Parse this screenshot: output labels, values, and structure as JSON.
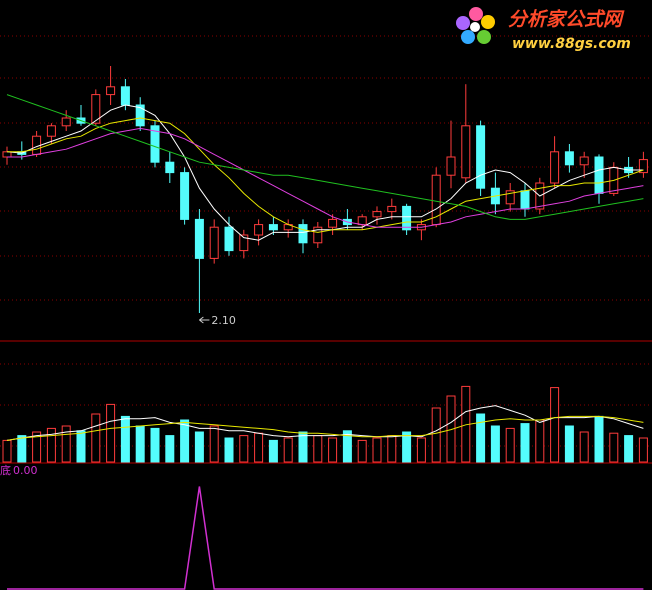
{
  "watermark": {
    "title": "分析家公式网",
    "url": "www.88gs.com"
  },
  "chart_data": {
    "type": "candlestick",
    "ylim": [
      2.0,
      3.3
    ],
    "up_color": "#ff3c3c",
    "down_color": "#54fcfc",
    "open": [
      2.7,
      2.72,
      2.71,
      2.78,
      2.82,
      2.85,
      2.83,
      2.94,
      2.97,
      2.9,
      2.82,
      2.68,
      2.64,
      2.46,
      2.31,
      2.43,
      2.34,
      2.4,
      2.44,
      2.42,
      2.44,
      2.37,
      2.43,
      2.46,
      2.44,
      2.47,
      2.49,
      2.51,
      2.42,
      2.44,
      2.63,
      2.62,
      2.82,
      2.58,
      2.52,
      2.57,
      2.5,
      2.6,
      2.72,
      2.67,
      2.7,
      2.56,
      2.66,
      2.64
    ],
    "high": [
      2.74,
      2.76,
      2.8,
      2.83,
      2.88,
      2.9,
      2.96,
      3.05,
      3.0,
      2.93,
      2.84,
      2.72,
      2.66,
      2.5,
      2.46,
      2.47,
      2.42,
      2.46,
      2.47,
      2.46,
      2.46,
      2.45,
      2.48,
      2.5,
      2.48,
      2.51,
      2.54,
      2.52,
      2.46,
      2.66,
      2.84,
      2.98,
      2.84,
      2.64,
      2.6,
      2.6,
      2.62,
      2.78,
      2.75,
      2.72,
      2.71,
      2.68,
      2.7,
      2.72
    ],
    "low": [
      2.67,
      2.69,
      2.7,
      2.75,
      2.8,
      2.82,
      2.82,
      2.9,
      2.88,
      2.8,
      2.66,
      2.6,
      2.44,
      2.1,
      2.29,
      2.32,
      2.31,
      2.36,
      2.4,
      2.39,
      2.33,
      2.35,
      2.4,
      2.42,
      2.42,
      2.44,
      2.46,
      2.4,
      2.38,
      2.43,
      2.58,
      2.6,
      2.55,
      2.48,
      2.49,
      2.47,
      2.48,
      2.58,
      2.64,
      2.62,
      2.52,
      2.55,
      2.62,
      2.62
    ],
    "close": [
      2.72,
      2.71,
      2.78,
      2.82,
      2.85,
      2.83,
      2.94,
      2.97,
      2.9,
      2.82,
      2.68,
      2.64,
      2.46,
      2.31,
      2.43,
      2.34,
      2.4,
      2.44,
      2.42,
      2.44,
      2.37,
      2.43,
      2.46,
      2.44,
      2.47,
      2.49,
      2.51,
      2.42,
      2.44,
      2.63,
      2.7,
      2.82,
      2.58,
      2.52,
      2.57,
      2.5,
      2.6,
      2.72,
      2.67,
      2.7,
      2.56,
      2.66,
      2.64,
      2.69
    ],
    "low_label": "2.10",
    "lines": [
      {
        "color": "#ffffff",
        "values": [
          2.72,
          2.715,
          2.74,
          2.76,
          2.78,
          2.8,
          2.84,
          2.88,
          2.9,
          2.89,
          2.86,
          2.79,
          2.7,
          2.58,
          2.5,
          2.44,
          2.39,
          2.38,
          2.41,
          2.41,
          2.41,
          2.42,
          2.42,
          2.43,
          2.43,
          2.46,
          2.47,
          2.47,
          2.47,
          2.5,
          2.54,
          2.6,
          2.63,
          2.65,
          2.64,
          2.6,
          2.55,
          2.58,
          2.61,
          2.63,
          2.65,
          2.66,
          2.65,
          2.65
        ]
      },
      {
        "color": "#e8e800",
        "values": [
          2.72,
          2.72,
          2.73,
          2.75,
          2.77,
          2.78,
          2.81,
          2.83,
          2.84,
          2.85,
          2.84,
          2.83,
          2.79,
          2.73,
          2.67,
          2.62,
          2.56,
          2.51,
          2.47,
          2.44,
          2.42,
          2.41,
          2.42,
          2.42,
          2.42,
          2.43,
          2.44,
          2.45,
          2.45,
          2.47,
          2.5,
          2.53,
          2.54,
          2.55,
          2.56,
          2.57,
          2.58,
          2.59,
          2.59,
          2.6,
          2.6,
          2.61,
          2.63,
          2.65
        ]
      },
      {
        "color": "#e040e0",
        "values": [
          2.7,
          2.7,
          2.71,
          2.72,
          2.73,
          2.75,
          2.77,
          2.79,
          2.8,
          2.81,
          2.8,
          2.79,
          2.77,
          2.74,
          2.71,
          2.68,
          2.65,
          2.62,
          2.59,
          2.56,
          2.53,
          2.5,
          2.47,
          2.45,
          2.44,
          2.43,
          2.43,
          2.43,
          2.43,
          2.44,
          2.45,
          2.47,
          2.48,
          2.49,
          2.5,
          2.5,
          2.51,
          2.52,
          2.53,
          2.55,
          2.56,
          2.57,
          2.58,
          2.59
        ]
      },
      {
        "color": "#20c020",
        "values": [
          2.94,
          2.92,
          2.9,
          2.88,
          2.86,
          2.84,
          2.82,
          2.8,
          2.78,
          2.76,
          2.74,
          2.72,
          2.7,
          2.68,
          2.67,
          2.66,
          2.65,
          2.64,
          2.63,
          2.63,
          2.62,
          2.61,
          2.6,
          2.59,
          2.58,
          2.57,
          2.56,
          2.55,
          2.54,
          2.53,
          2.52,
          2.51,
          2.49,
          2.47,
          2.46,
          2.46,
          2.47,
          2.48,
          2.49,
          2.5,
          2.51,
          2.52,
          2.53,
          2.54
        ]
      }
    ],
    "volume": {
      "ylim": [
        0,
        100
      ],
      "values": [
        18,
        22,
        25,
        28,
        30,
        26,
        40,
        48,
        38,
        30,
        28,
        22,
        35,
        25,
        30,
        20,
        22,
        24,
        18,
        20,
        25,
        22,
        20,
        26,
        18,
        20,
        22,
        25,
        20,
        45,
        55,
        63,
        40,
        30,
        28,
        32,
        35,
        62,
        30,
        25,
        38,
        24,
        22,
        20
      ],
      "lines": [
        {
          "color": "#ffffff",
          "values": [
            18,
            20,
            22,
            23,
            25,
            26,
            30,
            34,
            36,
            36,
            37,
            33,
            31,
            28,
            28,
            26,
            26,
            24,
            22,
            21,
            22,
            22,
            22,
            23,
            22,
            21,
            21,
            22,
            21,
            26,
            33,
            42,
            45,
            47,
            43,
            39,
            33,
            37,
            37,
            37,
            38,
            36,
            32,
            28
          ]
        },
        {
          "color": "#e8e800",
          "values": [
            18,
            20,
            21,
            22,
            23,
            24,
            26,
            28,
            29,
            30,
            31,
            32,
            33,
            32,
            31,
            30,
            29,
            28,
            27,
            25,
            24,
            24,
            23,
            22,
            21,
            21,
            22,
            22,
            22,
            24,
            27,
            31,
            33,
            35,
            36,
            35,
            35,
            37,
            38,
            38,
            38,
            37,
            35,
            33
          ]
        }
      ]
    },
    "indicator": {
      "name": "底",
      "value_label": "0.00",
      "color": "#d030d0",
      "ylim": [
        0,
        1.2
      ],
      "values": [
        0,
        0,
        0,
        0,
        0,
        0,
        0,
        0,
        0,
        0,
        0,
        0,
        0,
        1,
        0,
        0,
        0,
        0,
        0,
        0,
        0,
        0,
        0,
        0,
        0,
        0,
        0,
        0,
        0,
        0,
        0,
        0,
        0,
        0,
        0,
        0,
        0,
        0,
        0,
        0,
        0,
        0,
        0,
        0
      ]
    }
  }
}
